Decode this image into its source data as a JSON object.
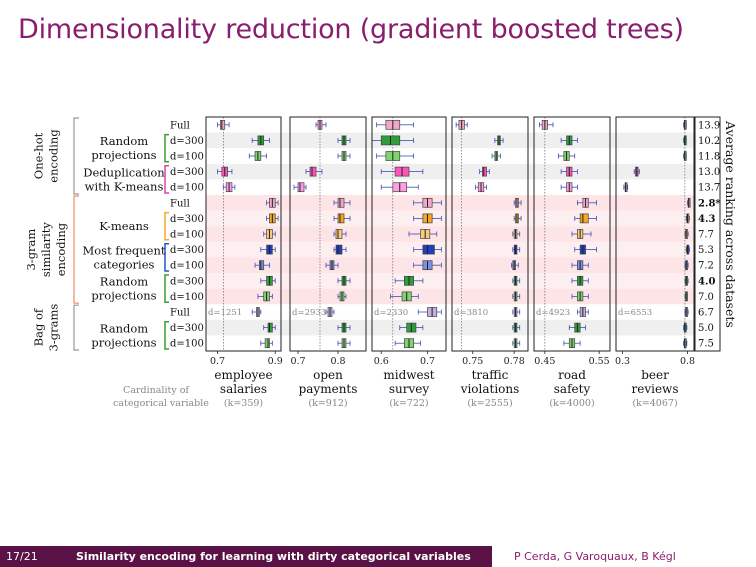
{
  "slide": {
    "title": "Dimensionality reduction (gradient boosted trees)",
    "footer": {
      "page": "17/21",
      "talk_title": "Similarity encoding for learning with dirty categorical variables",
      "authors": "P Cerda, G Varoquaux, B Kégl"
    }
  },
  "chart_data": {
    "type": "boxplot",
    "groups": [
      {
        "label": [
          "One-hot",
          "encoding"
        ],
        "rows": [
          0,
          4
        ]
      },
      {
        "label": [
          "3-gram",
          "similarity",
          "encoding"
        ],
        "rows": [
          5,
          11
        ]
      },
      {
        "label": [
          "Bag of",
          "3-grams"
        ],
        "rows": [
          12,
          14
        ]
      }
    ],
    "methods": [
      {
        "label": [
          "Random",
          "projections"
        ],
        "rows": [
          1,
          2
        ],
        "bracket_color": "#33a02c"
      },
      {
        "label": [
          "Deduplication",
          "with K-means"
        ],
        "rows": [
          3,
          4
        ],
        "bracket_color": "#e040b0"
      },
      {
        "label": [
          "K-means"
        ],
        "rows": [
          6,
          7
        ],
        "bracket_color": "#f5a623"
      },
      {
        "label": [
          "Most frequent",
          "categories"
        ],
        "rows": [
          8,
          9
        ],
        "bracket_color": "#2255cc"
      },
      {
        "label": [
          "Random",
          "projections"
        ],
        "rows": [
          10,
          11
        ],
        "bracket_color": "#33a02c"
      },
      {
        "label": [
          "Random",
          "projections"
        ],
        "rows": [
          13,
          14
        ],
        "bracket_color": "#33a02c"
      }
    ],
    "rows": [
      {
        "label": "Full",
        "rank": "13.9",
        "color": "#f4a6c8"
      },
      {
        "label": "d=300",
        "rank": "10.2",
        "color": "#2e9e3a"
      },
      {
        "label": "d=100",
        "rank": "11.8",
        "color": "#7fd36e"
      },
      {
        "label": "d=300",
        "rank": "13.0",
        "color": "#ff55bb"
      },
      {
        "label": "d=100",
        "rank": "13.7",
        "color": "#ff9ee3"
      },
      {
        "label": "Full",
        "rank": "2.8*",
        "color": "#f4a6c8",
        "bold": true
      },
      {
        "label": "d=300",
        "rank": "4.3",
        "color": "#f5a623",
        "bold": true
      },
      {
        "label": "d=100",
        "rank": "7.7",
        "color": "#fbc97a"
      },
      {
        "label": "d=300",
        "rank": "5.3",
        "color": "#1f3fbf"
      },
      {
        "label": "d=100",
        "rank": "7.2",
        "color": "#7b8fe6"
      },
      {
        "label": "d=300",
        "rank": "4.0",
        "color": "#2e9e3a",
        "bold": true
      },
      {
        "label": "d=100",
        "rank": "7.0",
        "color": "#7fd36e"
      },
      {
        "label": "Full",
        "rank": "6.7",
        "color": "#c4b0e0"
      },
      {
        "label": "d=300",
        "rank": "5.0",
        "color": "#2e9e3a"
      },
      {
        "label": "d=100",
        "rank": "7.5",
        "color": "#7fd36e"
      }
    ],
    "ranking_label": "Average ranking across datasets",
    "cardinality_label": [
      "Cardinality of",
      "categorical variable"
    ],
    "panels": [
      {
        "name": [
          "employee",
          "salaries"
        ],
        "k": "(k=359)",
        "xlim": [
          0.66,
          0.92
        ],
        "ticks": [
          "0.7",
          "0.9"
        ],
        "tick_values": [
          0.7,
          0.9
        ],
        "d_label": "d=1251",
        "ref": 0.72,
        "boxes": [
          [
            0.7,
            0.71,
            0.715,
            0.725,
            0.74
          ],
          [
            0.82,
            0.84,
            0.85,
            0.86,
            0.88
          ],
          [
            0.81,
            0.83,
            0.84,
            0.85,
            0.87
          ],
          [
            0.7,
            0.715,
            0.725,
            0.735,
            0.75
          ],
          [
            0.72,
            0.73,
            0.74,
            0.75,
            0.76
          ],
          [
            0.87,
            0.88,
            0.89,
            0.9,
            0.91
          ],
          [
            0.87,
            0.88,
            0.89,
            0.9,
            0.91
          ],
          [
            0.86,
            0.87,
            0.88,
            0.89,
            0.9
          ],
          [
            0.85,
            0.87,
            0.88,
            0.89,
            0.9
          ],
          [
            0.83,
            0.845,
            0.85,
            0.86,
            0.88
          ],
          [
            0.85,
            0.87,
            0.88,
            0.89,
            0.9
          ],
          [
            0.84,
            0.86,
            0.87,
            0.88,
            0.89
          ],
          [
            0.82,
            0.835,
            0.84,
            0.845,
            0.85
          ],
          [
            0.86,
            0.875,
            0.88,
            0.89,
            0.9
          ],
          [
            0.85,
            0.865,
            0.875,
            0.88,
            0.89
          ]
        ]
      },
      {
        "name": [
          "open",
          "payments"
        ],
        "k": "(k=912)",
        "xlim": [
          0.68,
          0.87
        ],
        "ticks": [
          "0.7",
          "0.8"
        ],
        "tick_values": [
          0.7,
          0.8
        ],
        "d_label": "d=2933",
        "ref": 0.755,
        "boxes": [
          [
            0.745,
            0.75,
            0.755,
            0.76,
            0.77
          ],
          [
            0.8,
            0.81,
            0.815,
            0.82,
            0.83
          ],
          [
            0.8,
            0.81,
            0.815,
            0.82,
            0.83
          ],
          [
            0.72,
            0.73,
            0.735,
            0.745,
            0.76
          ],
          [
            0.69,
            0.7,
            0.705,
            0.715,
            0.72
          ],
          [
            0.79,
            0.8,
            0.805,
            0.815,
            0.83
          ],
          [
            0.79,
            0.8,
            0.805,
            0.815,
            0.83
          ],
          [
            0.79,
            0.795,
            0.8,
            0.81,
            0.82
          ],
          [
            0.79,
            0.795,
            0.8,
            0.81,
            0.82
          ],
          [
            0.77,
            0.78,
            0.785,
            0.79,
            0.8
          ],
          [
            0.8,
            0.81,
            0.815,
            0.82,
            0.83
          ],
          [
            0.8,
            0.805,
            0.81,
            0.815,
            0.82
          ],
          [
            0.77,
            0.775,
            0.78,
            0.785,
            0.79
          ],
          [
            0.8,
            0.81,
            0.815,
            0.82,
            0.83
          ],
          [
            0.8,
            0.81,
            0.815,
            0.82,
            0.83
          ]
        ]
      },
      {
        "name": [
          "midwest",
          "survey"
        ],
        "k": "(k=722)",
        "xlim": [
          0.58,
          0.74
        ],
        "ticks": [
          "0.6",
          "0.7"
        ],
        "tick_values": [
          0.6,
          0.7
        ],
        "d_label": "d=2330",
        "ref": 0.625,
        "boxes": [
          [
            0.59,
            0.61,
            0.625,
            0.64,
            0.67
          ],
          [
            0.58,
            0.6,
            0.62,
            0.64,
            0.67
          ],
          [
            0.59,
            0.61,
            0.625,
            0.64,
            0.67
          ],
          [
            0.6,
            0.63,
            0.645,
            0.66,
            0.69
          ],
          [
            0.6,
            0.625,
            0.64,
            0.655,
            0.68
          ],
          [
            0.67,
            0.69,
            0.7,
            0.71,
            0.73
          ],
          [
            0.67,
            0.69,
            0.7,
            0.71,
            0.73
          ],
          [
            0.66,
            0.685,
            0.695,
            0.705,
            0.72
          ],
          [
            0.67,
            0.69,
            0.7,
            0.715,
            0.73
          ],
          [
            0.67,
            0.69,
            0.7,
            0.71,
            0.73
          ],
          [
            0.63,
            0.65,
            0.66,
            0.67,
            0.69
          ],
          [
            0.62,
            0.645,
            0.655,
            0.665,
            0.68
          ],
          [
            0.68,
            0.7,
            0.71,
            0.72,
            0.73
          ],
          [
            0.64,
            0.655,
            0.665,
            0.675,
            0.69
          ],
          [
            0.63,
            0.65,
            0.66,
            0.67,
            0.685
          ]
        ]
      },
      {
        "name": [
          "traffic",
          "violations"
        ],
        "k": "(k=2555)",
        "xlim": [
          0.735,
          0.79
        ],
        "ticks": [
          "0.75",
          "0.78"
        ],
        "tick_values": [
          0.75,
          0.78
        ],
        "d_label": "d=3810",
        "ref": 0.742,
        "boxes": [
          [
            0.738,
            0.74,
            0.742,
            0.744,
            0.746
          ],
          [
            0.766,
            0.768,
            0.769,
            0.77,
            0.772
          ],
          [
            0.764,
            0.766,
            0.767,
            0.768,
            0.77
          ],
          [
            0.755,
            0.757,
            0.758,
            0.76,
            0.762
          ],
          [
            0.752,
            0.754,
            0.756,
            0.758,
            0.76
          ],
          [
            0.78,
            0.781,
            0.782,
            0.783,
            0.785
          ],
          [
            0.78,
            0.781,
            0.782,
            0.783,
            0.785
          ],
          [
            0.779,
            0.78,
            0.781,
            0.782,
            0.784
          ],
          [
            0.779,
            0.78,
            0.781,
            0.782,
            0.784
          ],
          [
            0.778,
            0.779,
            0.78,
            0.781,
            0.783
          ],
          [
            0.779,
            0.78,
            0.781,
            0.782,
            0.784
          ],
          [
            0.779,
            0.78,
            0.781,
            0.782,
            0.784
          ],
          [
            0.779,
            0.78,
            0.781,
            0.782,
            0.784
          ],
          [
            0.779,
            0.78,
            0.781,
            0.782,
            0.784
          ],
          [
            0.779,
            0.78,
            0.781,
            0.782,
            0.784
          ]
        ]
      },
      {
        "name": [
          "road",
          "safety"
        ],
        "k": "(k=4000)",
        "xlim": [
          0.43,
          0.57
        ],
        "ticks": [
          "0.45",
          "0.55"
        ],
        "tick_values": [
          0.45,
          0.55
        ],
        "d_label": "d=4923",
        "ref": 0.45,
        "boxes": [
          [
            0.44,
            0.445,
            0.45,
            0.455,
            0.465
          ],
          [
            0.48,
            0.49,
            0.495,
            0.5,
            0.51
          ],
          [
            0.475,
            0.485,
            0.49,
            0.495,
            0.505
          ],
          [
            0.48,
            0.49,
            0.495,
            0.5,
            0.51
          ],
          [
            0.48,
            0.49,
            0.495,
            0.5,
            0.51
          ],
          [
            0.51,
            0.52,
            0.525,
            0.53,
            0.545
          ],
          [
            0.505,
            0.515,
            0.52,
            0.53,
            0.545
          ],
          [
            0.5,
            0.51,
            0.515,
            0.52,
            0.535
          ],
          [
            0.505,
            0.515,
            0.52,
            0.525,
            0.545
          ],
          [
            0.5,
            0.51,
            0.515,
            0.52,
            0.53
          ],
          [
            0.5,
            0.51,
            0.515,
            0.52,
            0.53
          ],
          [
            0.5,
            0.51,
            0.515,
            0.52,
            0.53
          ],
          [
            0.51,
            0.515,
            0.52,
            0.525,
            0.53
          ],
          [
            0.495,
            0.505,
            0.51,
            0.515,
            0.525
          ],
          [
            0.485,
            0.495,
            0.5,
            0.505,
            0.515
          ]
        ]
      },
      {
        "name": [
          "beer",
          "reviews"
        ],
        "k": "(k=4067)",
        "xlim": [
          0.25,
          0.85
        ],
        "ticks": [
          "0.3",
          "0.8"
        ],
        "tick_values": [
          0.3,
          0.8
        ],
        "d_label": "d=6553",
        "ref": 0.78,
        "boxes": [
          [
            0.77,
            0.775,
            0.78,
            0.785,
            0.79
          ],
          [
            0.77,
            0.775,
            0.78,
            0.785,
            0.79
          ],
          [
            0.77,
            0.775,
            0.78,
            0.785,
            0.79
          ],
          [
            0.39,
            0.4,
            0.41,
            0.42,
            0.43
          ],
          [
            0.31,
            0.32,
            0.325,
            0.33,
            0.34
          ],
          [
            0.8,
            0.805,
            0.81,
            0.815,
            0.82
          ],
          [
            0.79,
            0.795,
            0.8,
            0.805,
            0.815
          ],
          [
            0.78,
            0.785,
            0.79,
            0.795,
            0.805
          ],
          [
            0.79,
            0.795,
            0.8,
            0.805,
            0.815
          ],
          [
            0.78,
            0.785,
            0.79,
            0.795,
            0.805
          ],
          [
            0.78,
            0.785,
            0.79,
            0.795,
            0.805
          ],
          [
            0.78,
            0.785,
            0.79,
            0.795,
            0.8
          ],
          [
            0.78,
            0.785,
            0.79,
            0.795,
            0.805
          ],
          [
            0.77,
            0.775,
            0.78,
            0.785,
            0.795
          ],
          [
            0.77,
            0.775,
            0.78,
            0.785,
            0.795
          ]
        ]
      }
    ]
  }
}
